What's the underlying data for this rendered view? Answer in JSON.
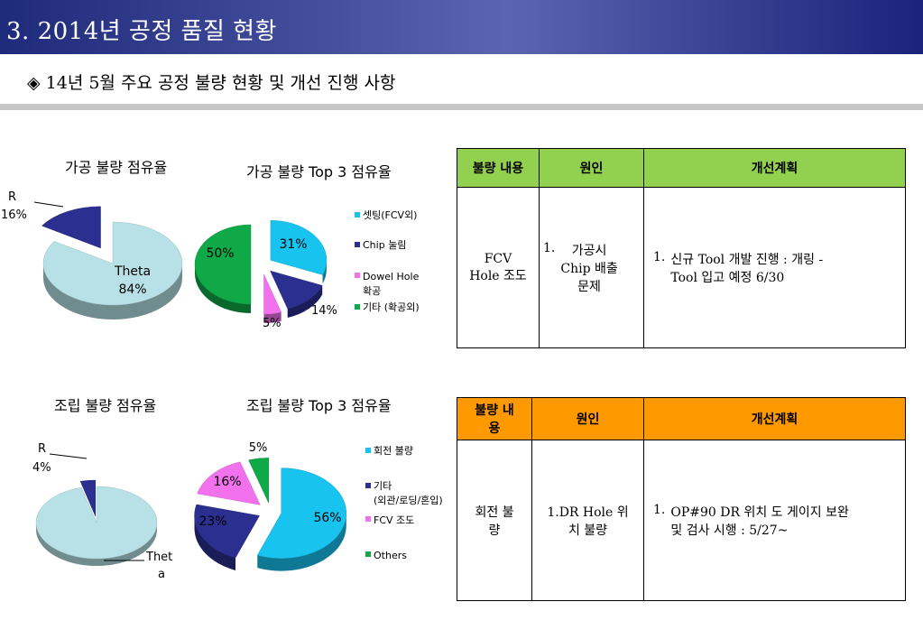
{
  "header": {
    "title": "3. 2014년  공정 품질 현황"
  },
  "subtitle": "◈ 14년 5월 주요 공정 불량 현황 및 개선 진행 사항",
  "chart_titles": {
    "machining_share": "가공 불량 점유율",
    "machining_top3": "가공 불량 Top 3 점유율",
    "assembly_share": "조립 불량 점유율",
    "assembly_top3": "조립 불량 Top 3 점유율"
  },
  "chart_data": [
    {
      "type": "pie",
      "title": "가공 불량 점유율",
      "slices": [
        {
          "label": "Theta",
          "value": 84,
          "display": "84%",
          "color": "#b7e1e6"
        },
        {
          "label": "R",
          "value": 16,
          "display": "16%",
          "color": "#2b2f8f"
        }
      ]
    },
    {
      "type": "pie",
      "title": "가공 불량 Top 3 점유율",
      "slices": [
        {
          "label": "셋팅(FCV외)",
          "value": 31,
          "display": "31%",
          "color": "#18c3f0"
        },
        {
          "label": "Chip 눌림",
          "value": 14,
          "display": "14%",
          "color": "#2b2f8f"
        },
        {
          "label": "Dowel Hole\n확공",
          "value": 5,
          "display": "5%",
          "color": "#f272ee"
        },
        {
          "label": "기타 (확공외)",
          "value": 50,
          "display": "50%",
          "color": "#0fa948"
        }
      ]
    },
    {
      "type": "pie",
      "title": "조립 불량 점유율",
      "slices": [
        {
          "label": "Theta",
          "value": 96,
          "display": "",
          "color": "#b7e1e6"
        },
        {
          "label": "R",
          "value": 4,
          "display": "4%",
          "color": "#2b2f8f"
        }
      ]
    },
    {
      "type": "pie",
      "title": "조립 불량 Top 3 점유율",
      "slices": [
        {
          "label": "회전 불량",
          "value": 56,
          "display": "56%",
          "color": "#18c3f0"
        },
        {
          "label": "기타\n(외관/로딩/혼입)",
          "value": 23,
          "display": "23%",
          "color": "#2b2f8f"
        },
        {
          "label": "FCV 조도",
          "value": 16,
          "display": "16%",
          "color": "#f272ee"
        },
        {
          "label": "Others",
          "value": 5,
          "display": "5%",
          "color": "#0fa948"
        }
      ]
    }
  ],
  "pie_labels": {
    "m_r_name": "R",
    "m_r_pct": "16%",
    "m_theta_name": "Theta",
    "m_theta_pct": "84%",
    "a_r_name": "R",
    "a_r_pct": "4%",
    "a_theta_line1": "Thet",
    "a_theta_line2": "a",
    "m_setting_pct": "31%",
    "m_chip_pct": "14%",
    "m_dowel_pct": "5%",
    "m_etc_pct": "50%",
    "a_rot_pct": "56%",
    "a_etc_pct": "23%",
    "a_fcv_pct": "16%",
    "a_oth_pct": "5%"
  },
  "legends": {
    "machining": [
      "셋팅(FCV외)",
      "Chip 눌림",
      "Dowel Hole",
      "확공",
      "기타 (확공외)"
    ],
    "assembly": [
      "회전 불량",
      "기타",
      "(외관/로딩/혼입)",
      "FCV 조도",
      "Others"
    ]
  },
  "colors": {
    "title_bar": "#2a3388",
    "machining_header": "#92d050",
    "assembly_header": "#ff9900",
    "cyan": "#18c3f0",
    "navy": "#2b2f8f",
    "magenta": "#f272ee",
    "green": "#0fa948",
    "light": "#b7e1e6"
  },
  "tables": {
    "machining": {
      "headers": [
        "불량 내용",
        "원인",
        "개선계획"
      ],
      "defect": [
        "FCV",
        "Hole 조도"
      ],
      "cause_num": "1.",
      "cause": [
        "가공시",
        "Chip 배출",
        "문제"
      ],
      "plan_num": "1.",
      "plan": [
        "신규 Tool 개발 진행 : 개링 -",
        "Tool 입고 예정  6/30"
      ]
    },
    "assembly": {
      "headers": [
        "불량 내",
        "용",
        "원인",
        "개선계획"
      ],
      "defect": [
        "회전 불",
        "량"
      ],
      "cause": [
        "1.DR Hole 위",
        "치 불량"
      ],
      "plan_num": "1.",
      "plan": [
        "OP#90 DR 위치 도 게이지 보완",
        "및 검사 시행 : 5/27~"
      ]
    }
  }
}
